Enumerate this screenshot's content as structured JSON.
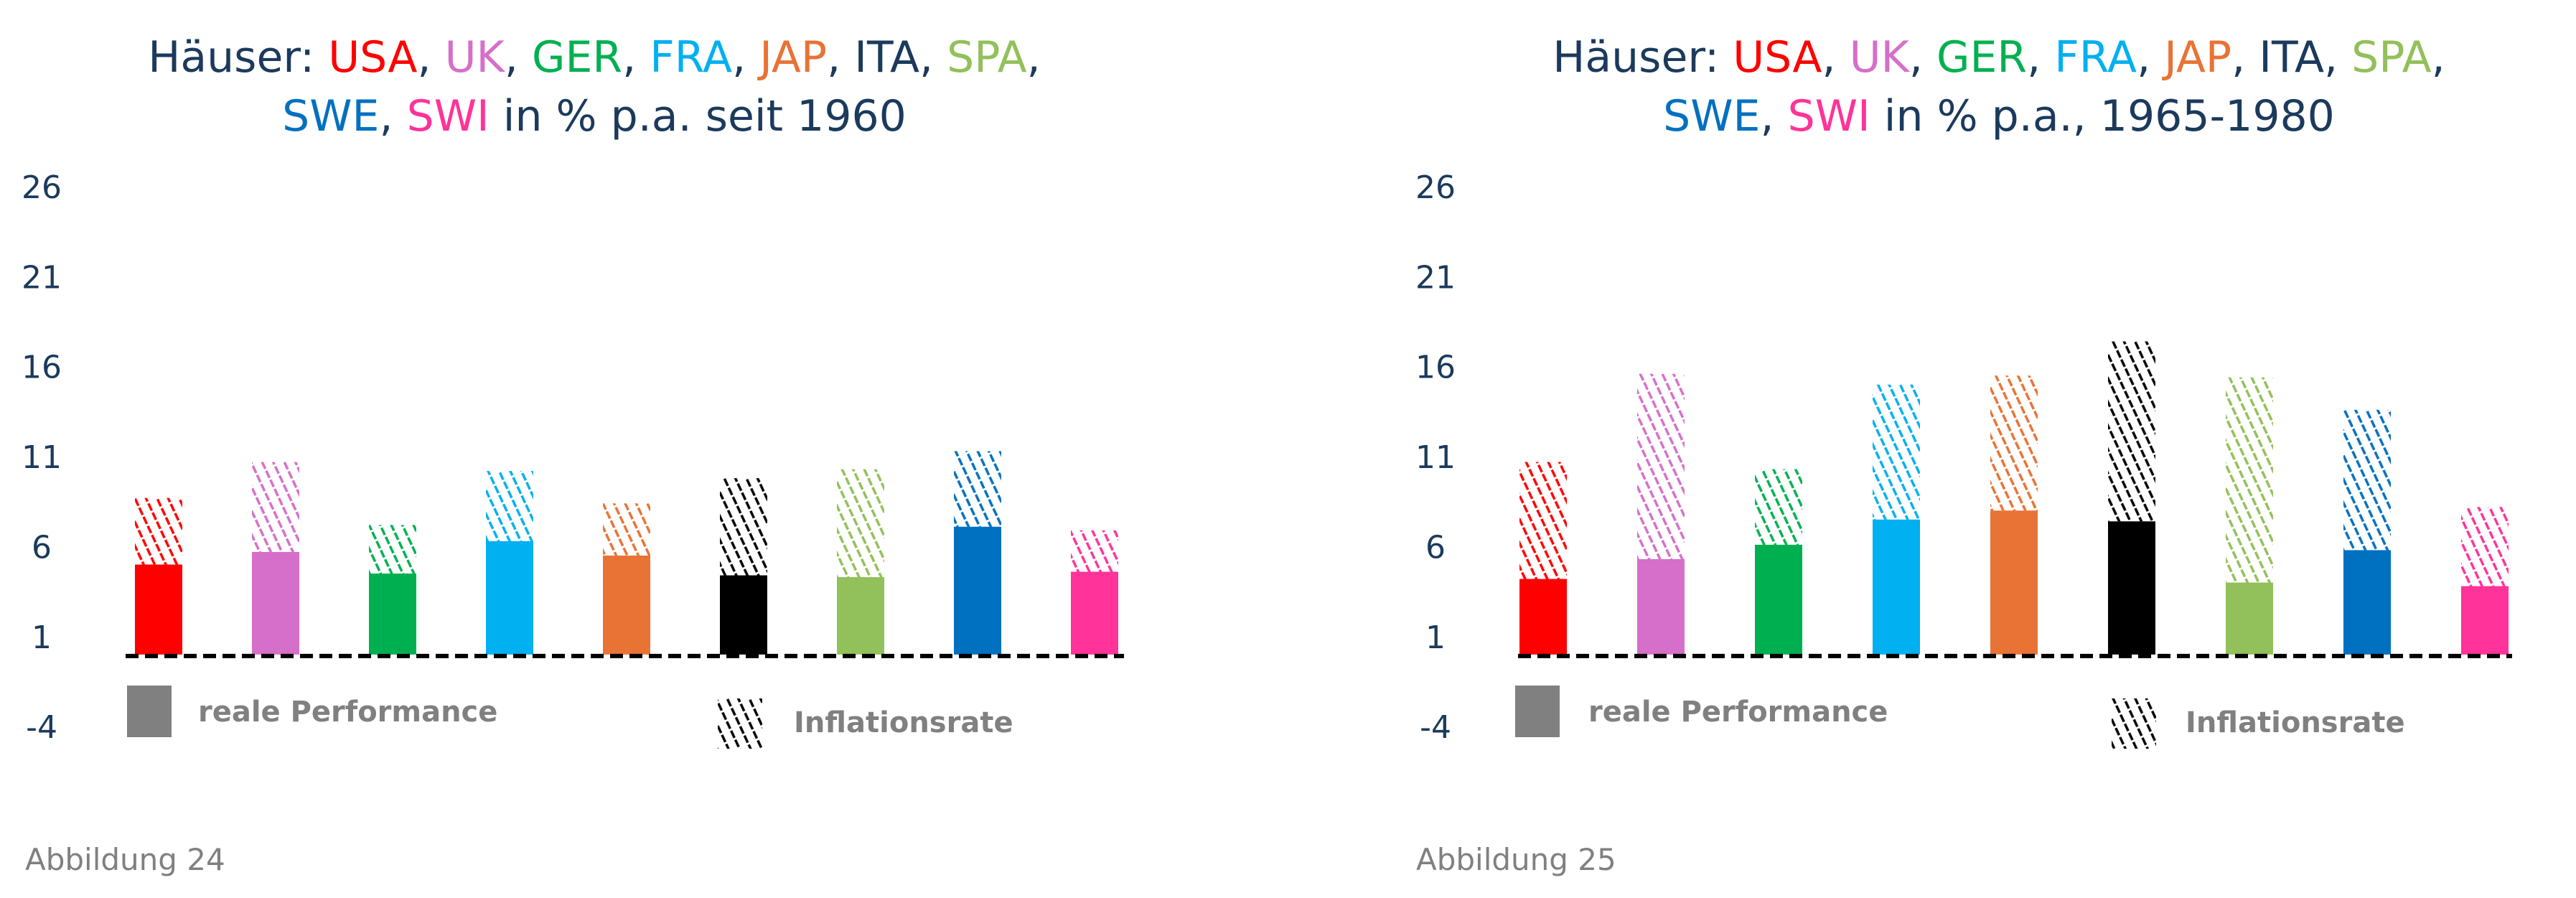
{
  "colors": {
    "USA": "#ff0000",
    "UK": "#d66fc9",
    "GER": "#00b050",
    "FRA": "#00b0f0",
    "JAP": "#e87335",
    "ITA": "#000000",
    "SPA": "#92c05a",
    "SWE": "#0070c0",
    "SWI": "#ff3399",
    "title_text": "#1b3a5c",
    "legend_gray": "#808080"
  },
  "legend": {
    "real": "reale Performance",
    "inflation": "Inflationsrate"
  },
  "chart_data": [
    {
      "type": "bar",
      "stacked": true,
      "title_segments": [
        {
          "text": "Häuser: ",
          "color": "title_text"
        },
        {
          "text": "USA",
          "color": "USA"
        },
        {
          "text": ", ",
          "color": "title_text"
        },
        {
          "text": "UK",
          "color": "UK"
        },
        {
          "text": ", ",
          "color": "title_text"
        },
        {
          "text": "GER",
          "color": "GER"
        },
        {
          "text": ", ",
          "color": "title_text"
        },
        {
          "text": "FRA",
          "color": "FRA"
        },
        {
          "text": ", ",
          "color": "title_text"
        },
        {
          "text": "JAP",
          "color": "JAP"
        },
        {
          "text": ", ",
          "color": "title_text"
        },
        {
          "text": "ITA",
          "color": "title_text"
        },
        {
          "text": ", ",
          "color": "title_text"
        },
        {
          "text": "SPA",
          "color": "SPA"
        },
        {
          "text": ",",
          "color": "title_text"
        }
      ],
      "title_segments_line2": [
        {
          "text": "SWE",
          "color": "SWE"
        },
        {
          "text": ", ",
          "color": "title_text"
        },
        {
          "text": "SWI",
          "color": "SWI"
        },
        {
          "text": " in % p.a. seit 1960",
          "color": "title_text"
        }
      ],
      "categories": [
        "USA",
        "UK",
        "GER",
        "FRA",
        "JAP",
        "ITA",
        "SPA",
        "SWE",
        "SWI"
      ],
      "series": [
        {
          "name": "reale Performance",
          "values": [
            5.0,
            5.7,
            4.5,
            6.3,
            5.5,
            4.4,
            4.3,
            7.1,
            4.6
          ]
        },
        {
          "name": "Inflationsrate",
          "values": [
            3.7,
            5.0,
            2.7,
            3.9,
            2.9,
            5.4,
            6.0,
            4.2,
            2.3
          ]
        }
      ],
      "yticks": [
        26,
        21,
        16,
        11,
        6,
        1,
        -4
      ],
      "ylim": [
        -4,
        26
      ],
      "footer": "Abbildung 24"
    },
    {
      "type": "bar",
      "stacked": true,
      "title_segments": [
        {
          "text": "Häuser: ",
          "color": "title_text"
        },
        {
          "text": "USA",
          "color": "USA"
        },
        {
          "text": ", ",
          "color": "title_text"
        },
        {
          "text": "UK",
          "color": "UK"
        },
        {
          "text": ", ",
          "color": "title_text"
        },
        {
          "text": "GER",
          "color": "GER"
        },
        {
          "text": ", ",
          "color": "title_text"
        },
        {
          "text": "FRA",
          "color": "FRA"
        },
        {
          "text": ", ",
          "color": "title_text"
        },
        {
          "text": "JAP",
          "color": "JAP"
        },
        {
          "text": ", ",
          "color": "title_text"
        },
        {
          "text": "ITA",
          "color": "title_text"
        },
        {
          "text": ", ",
          "color": "title_text"
        },
        {
          "text": "SPA",
          "color": "SPA"
        },
        {
          "text": ",",
          "color": "title_text"
        }
      ],
      "title_segments_line2": [
        {
          "text": "SWE",
          "color": "SWE"
        },
        {
          "text": ", ",
          "color": "title_text"
        },
        {
          "text": "SWI",
          "color": "SWI"
        },
        {
          "text": " in % p.a., 1965-1980",
          "color": "title_text"
        }
      ],
      "categories": [
        "USA",
        "UK",
        "GER",
        "FRA",
        "JAP",
        "ITA",
        "SPA",
        "SWE",
        "SWI"
      ],
      "series": [
        {
          "name": "reale Performance",
          "values": [
            4.2,
            5.3,
            6.1,
            7.5,
            8.0,
            7.4,
            4.0,
            5.8,
            3.8
          ]
        },
        {
          "name": "Inflationsrate",
          "values": [
            6.5,
            10.3,
            4.2,
            7.5,
            7.5,
            10.0,
            11.4,
            7.8,
            4.4
          ]
        }
      ],
      "yticks": [
        26,
        21,
        16,
        11,
        6,
        1,
        -4
      ],
      "ylim": [
        -4,
        26
      ],
      "footer": "Abbildung 25"
    }
  ]
}
